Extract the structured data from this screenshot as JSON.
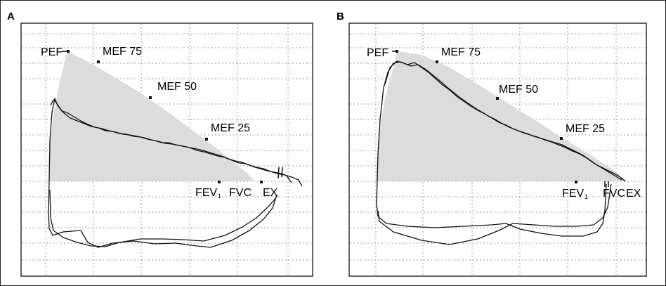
{
  "panels": [
    {
      "letter": "A",
      "labels": {
        "pef": "PEF",
        "mef75": "MEF 75",
        "mef50": "MEF 50",
        "mef25": "MEF 25",
        "fev": "FEV",
        "fev_sub": "1",
        "fvc": "FVC",
        "ex": "EX"
      }
    },
    {
      "letter": "B",
      "labels": {
        "pef": "PEF",
        "mef75": "MEF 75",
        "mef50": "MEF 50",
        "mef25": "MEF 25",
        "fev": "FEV",
        "fev_sub": "1",
        "fvc": "FVC",
        "ex": "EX"
      }
    }
  ]
}
